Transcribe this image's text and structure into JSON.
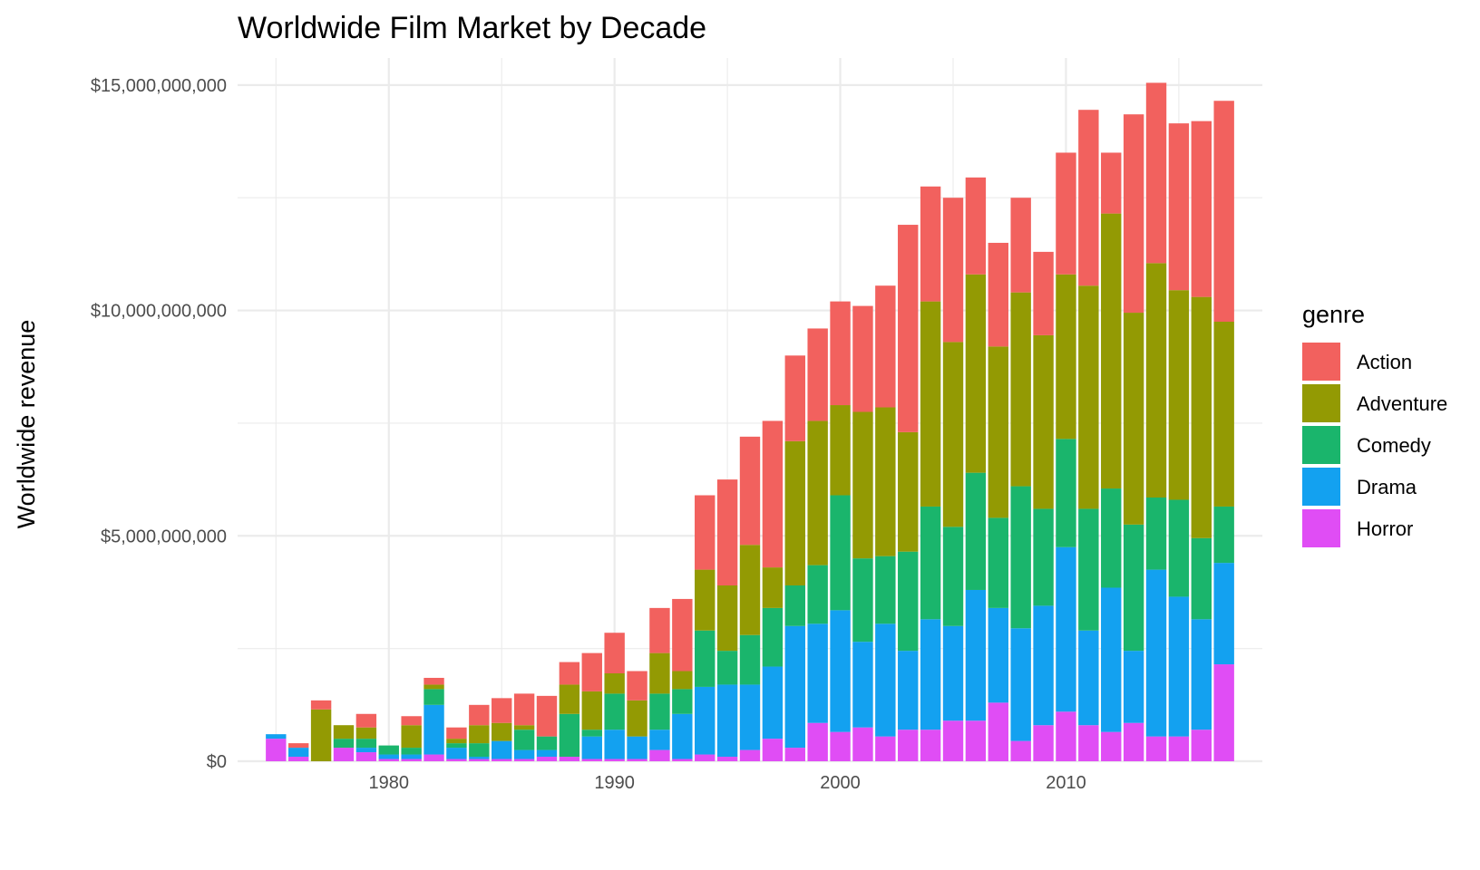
{
  "chart_data": {
    "type": "bar",
    "stacked": true,
    "title": "Worldwide Film Market by Decade",
    "ylabel": "Worldwide revenue",
    "legend_title": "genre",
    "legend_position": "right",
    "grid": true,
    "xlim": [
      1973.3,
      2018.7
    ],
    "ylim": [
      0,
      15600000000
    ],
    "x_ticks": [
      1980,
      1990,
      2000,
      2010
    ],
    "x_tick_labels": [
      "1980",
      "1990",
      "2000",
      "2010"
    ],
    "y_ticks": [
      0,
      5000000000,
      10000000000,
      15000000000
    ],
    "y_tick_labels": [
      "$0",
      "$5,000,000,000",
      "$10,000,000,000",
      "$15,000,000,000"
    ],
    "x": [
      1975,
      1976,
      1977,
      1978,
      1979,
      1980,
      1981,
      1982,
      1983,
      1984,
      1985,
      1986,
      1987,
      1988,
      1989,
      1990,
      1991,
      1992,
      1993,
      1994,
      1995,
      1996,
      1997,
      1998,
      1999,
      2000,
      2001,
      2002,
      2003,
      2004,
      2005,
      2006,
      2007,
      2008,
      2009,
      2010,
      2011,
      2012,
      2013,
      2014,
      2015,
      2016,
      2017
    ],
    "series": [
      {
        "name": "Horror",
        "color": "#E04DF5",
        "values": [
          0.5,
          0.1,
          0.0,
          0.3,
          0.2,
          0.05,
          0.05,
          0.15,
          0.05,
          0.05,
          0.05,
          0.05,
          0.1,
          0.1,
          0.05,
          0.05,
          0.05,
          0.25,
          0.05,
          0.15,
          0.1,
          0.25,
          0.5,
          0.3,
          0.85,
          0.65,
          0.75,
          0.55,
          0.7,
          0.7,
          0.9,
          0.9,
          1.3,
          0.45,
          0.8,
          1.1,
          0.8,
          0.65,
          0.85,
          0.55,
          0.55,
          0.7,
          2.15
        ]
      },
      {
        "name": "Drama",
        "color": "#13A1F0",
        "values": [
          0.1,
          0.2,
          0.0,
          0.0,
          0.1,
          0.1,
          0.1,
          1.1,
          0.25,
          0.05,
          0.4,
          0.2,
          0.15,
          0.0,
          0.5,
          0.65,
          0.5,
          0.45,
          1.0,
          1.5,
          1.6,
          1.45,
          1.6,
          2.7,
          2.2,
          2.7,
          1.9,
          2.5,
          1.75,
          2.45,
          2.1,
          2.9,
          2.1,
          2.5,
          2.65,
          3.65,
          2.1,
          3.2,
          1.6,
          3.7,
          3.1,
          2.45,
          2.25
        ]
      },
      {
        "name": "Comedy",
        "color": "#1AB56C",
        "values": [
          0.0,
          0.0,
          0.0,
          0.2,
          0.2,
          0.2,
          0.15,
          0.35,
          0.1,
          0.3,
          0.0,
          0.45,
          0.3,
          0.95,
          0.15,
          0.8,
          0.0,
          0.8,
          0.55,
          1.25,
          0.75,
          1.1,
          1.3,
          0.9,
          1.3,
          2.55,
          1.85,
          1.5,
          2.2,
          2.5,
          2.2,
          2.6,
          2.0,
          3.15,
          2.15,
          2.4,
          2.7,
          2.2,
          2.8,
          1.6,
          2.15,
          1.8,
          1.25
        ]
      },
      {
        "name": "Adventure",
        "color": "#939A03",
        "values": [
          0.0,
          0.0,
          1.15,
          0.3,
          0.25,
          0.0,
          0.5,
          0.1,
          0.1,
          0.4,
          0.4,
          0.1,
          0.0,
          0.65,
          0.85,
          0.45,
          0.8,
          0.9,
          0.4,
          1.35,
          1.45,
          2.0,
          0.9,
          3.2,
          3.2,
          2.0,
          3.25,
          3.3,
          2.65,
          4.55,
          4.1,
          4.4,
          3.8,
          4.3,
          3.85,
          3.65,
          4.95,
          6.1,
          4.7,
          5.2,
          4.65,
          5.35,
          4.1
        ]
      },
      {
        "name": "Action",
        "color": "#F2615E",
        "values": [
          0.0,
          0.1,
          0.2,
          0.0,
          0.3,
          0.0,
          0.2,
          0.15,
          0.25,
          0.45,
          0.55,
          0.7,
          0.9,
          0.5,
          0.85,
          0.9,
          0.65,
          1.0,
          1.6,
          1.65,
          2.35,
          2.4,
          3.25,
          1.9,
          2.05,
          2.3,
          2.35,
          2.7,
          4.6,
          2.55,
          3.2,
          2.15,
          2.3,
          2.1,
          1.85,
          2.7,
          3.9,
          1.35,
          4.4,
          4.0,
          3.7,
          3.9,
          4.9
        ]
      }
    ],
    "value_scale": 1000000000,
    "legend_order": [
      "Action",
      "Adventure",
      "Comedy",
      "Drama",
      "Horror"
    ]
  }
}
